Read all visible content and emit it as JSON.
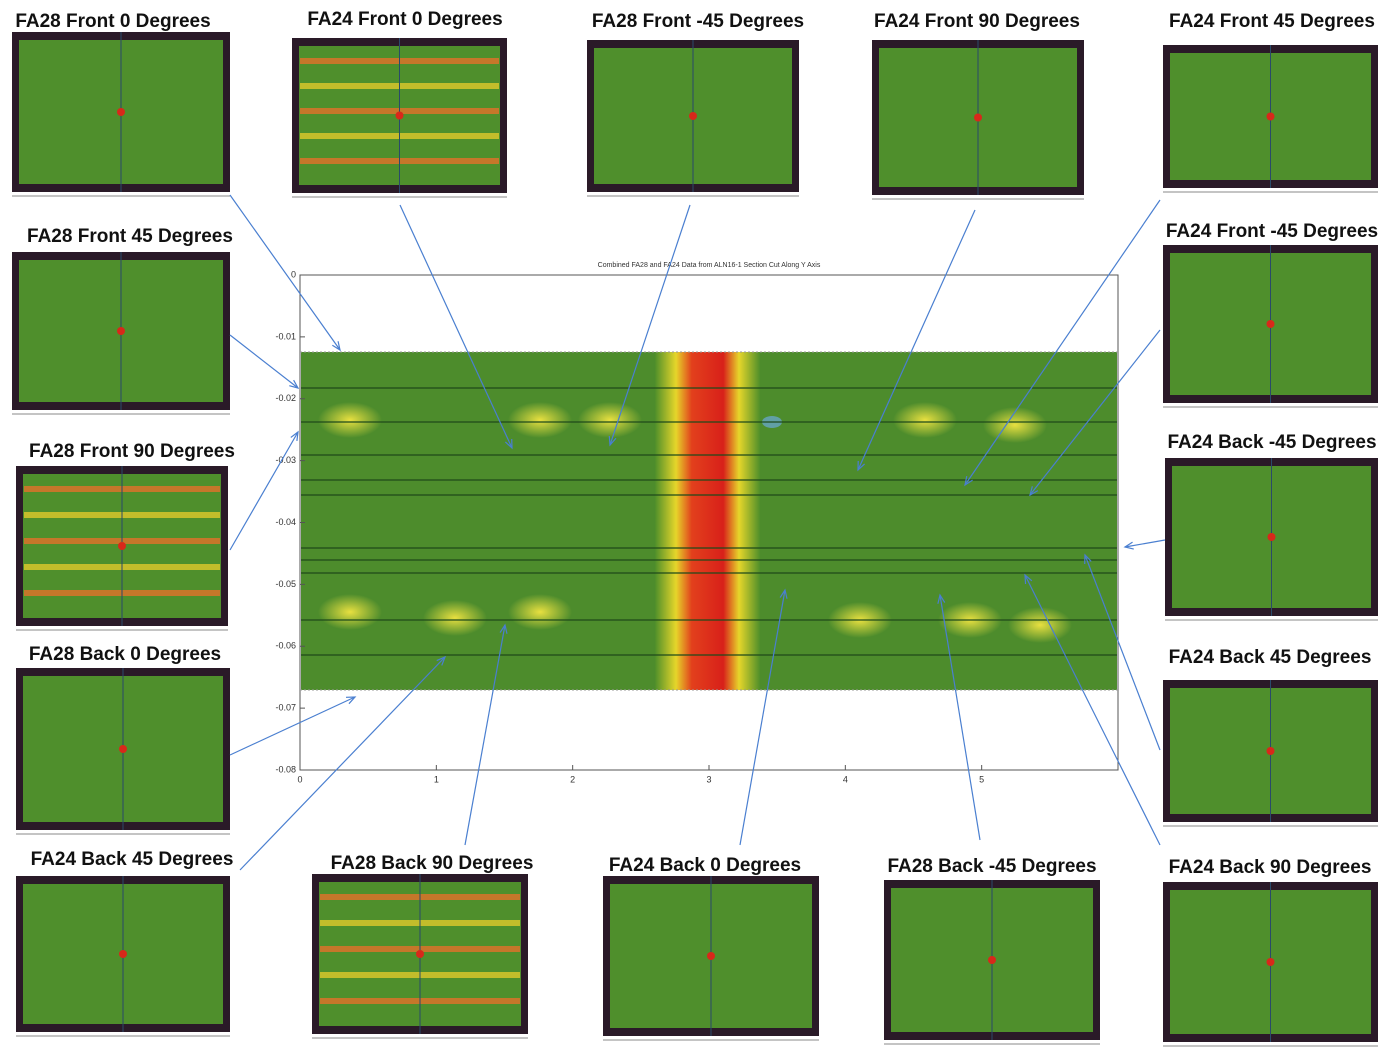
{
  "panels": [
    {
      "title": "FA28 Front 0 Degrees"
    },
    {
      "title": "FA24 Front 0 Degrees"
    },
    {
      "title": "FA28 Front -45 Degrees"
    },
    {
      "title": "FA24 Front 90 Degrees"
    },
    {
      "title": "FA24 Front 45 Degrees"
    },
    {
      "title": "FA28 Front 45 Degrees"
    },
    {
      "title": "FA24 Front -45 Degrees"
    },
    {
      "title": "FA28 Front 90 Degrees"
    },
    {
      "title": "FA24 Back -45 Degrees"
    },
    {
      "title": "FA28 Back 0 Degrees"
    },
    {
      "title": "FA24 Back 45 Degrees"
    },
    {
      "title": "FA24 Back 45 Degrees"
    },
    {
      "title": "FA28 Back 90 Degrees"
    },
    {
      "title": "FA24 Back 0 Degrees"
    },
    {
      "title": "FA28 Back -45 Degrees"
    },
    {
      "title": "FA24 Back 90 Degrees"
    }
  ],
  "plot": {
    "title": "Combined FA28 and FA24 Data from ALN16-1  Section Cut Along Y Axis",
    "xlim": [
      0,
      6
    ],
    "ylim": [
      -0.08,
      0
    ],
    "xticks": [
      0,
      1,
      2,
      3,
      4,
      5
    ],
    "yticks": [
      0,
      -0.01,
      -0.02,
      -0.03,
      -0.04,
      -0.05,
      -0.06,
      -0.07,
      -0.08
    ]
  }
}
